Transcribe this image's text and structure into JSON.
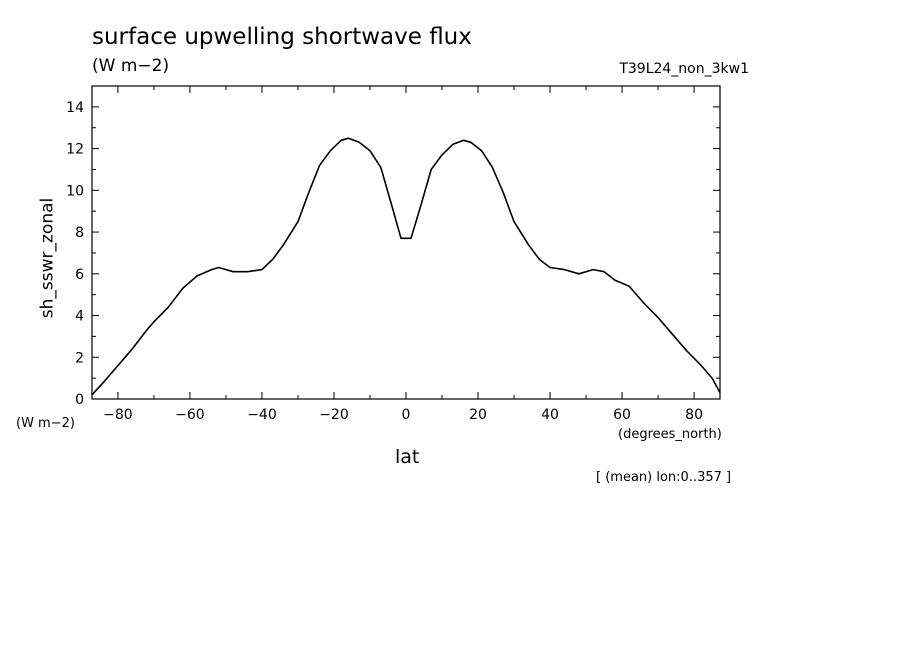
{
  "header": {
    "title": "surface upwelling shortwave flux",
    "units": "(W m−2)",
    "run_id": "T39L24_non_3kw1",
    "mean_note": "[ (mean) lon:0..357 ]"
  },
  "chart_data": {
    "type": "line",
    "title": "surface upwelling shortwave flux",
    "xlabel": "lat",
    "xunits": "(degrees_north)",
    "ylabel": "sh_sswr_zonal",
    "yunits": "(W m−2)",
    "xlim": [
      -87.2,
      87.2
    ],
    "ylim": [
      0,
      15
    ],
    "xticks": [
      -80,
      -60,
      -40,
      -20,
      0,
      20,
      40,
      60,
      80
    ],
    "yticks": [
      0,
      2,
      4,
      6,
      8,
      10,
      12,
      14
    ],
    "grid": false,
    "color": "#000000",
    "x": [
      -87.2,
      -84,
      -80,
      -76,
      -72,
      -70,
      -66,
      -62,
      -58,
      -54,
      -52,
      -48,
      -44,
      -40,
      -37,
      -34,
      -30,
      -27,
      -24,
      -21,
      -18,
      -16,
      -13,
      -10,
      -7,
      -4,
      -1.4,
      1.4,
      4,
      7,
      10,
      13,
      16,
      18,
      21,
      24,
      27,
      30,
      34,
      37,
      40,
      44,
      48,
      52,
      55,
      58,
      62,
      66,
      70,
      74,
      78,
      82,
      85,
      87.2
    ],
    "y": [
      0.2,
      0.8,
      1.6,
      2.4,
      3.3,
      3.7,
      4.4,
      5.3,
      5.9,
      6.2,
      6.3,
      6.1,
      6.1,
      6.2,
      6.7,
      7.4,
      8.5,
      9.9,
      11.2,
      11.9,
      12.4,
      12.5,
      12.3,
      11.9,
      11.1,
      9.3,
      7.7,
      7.7,
      9.2,
      11.0,
      11.7,
      12.2,
      12.4,
      12.3,
      11.9,
      11.1,
      9.9,
      8.5,
      7.4,
      6.7,
      6.3,
      6.2,
      6.0,
      6.2,
      6.1,
      5.7,
      5.4,
      4.6,
      3.9,
      3.1,
      2.3,
      1.6,
      1.0,
      0.3
    ]
  }
}
